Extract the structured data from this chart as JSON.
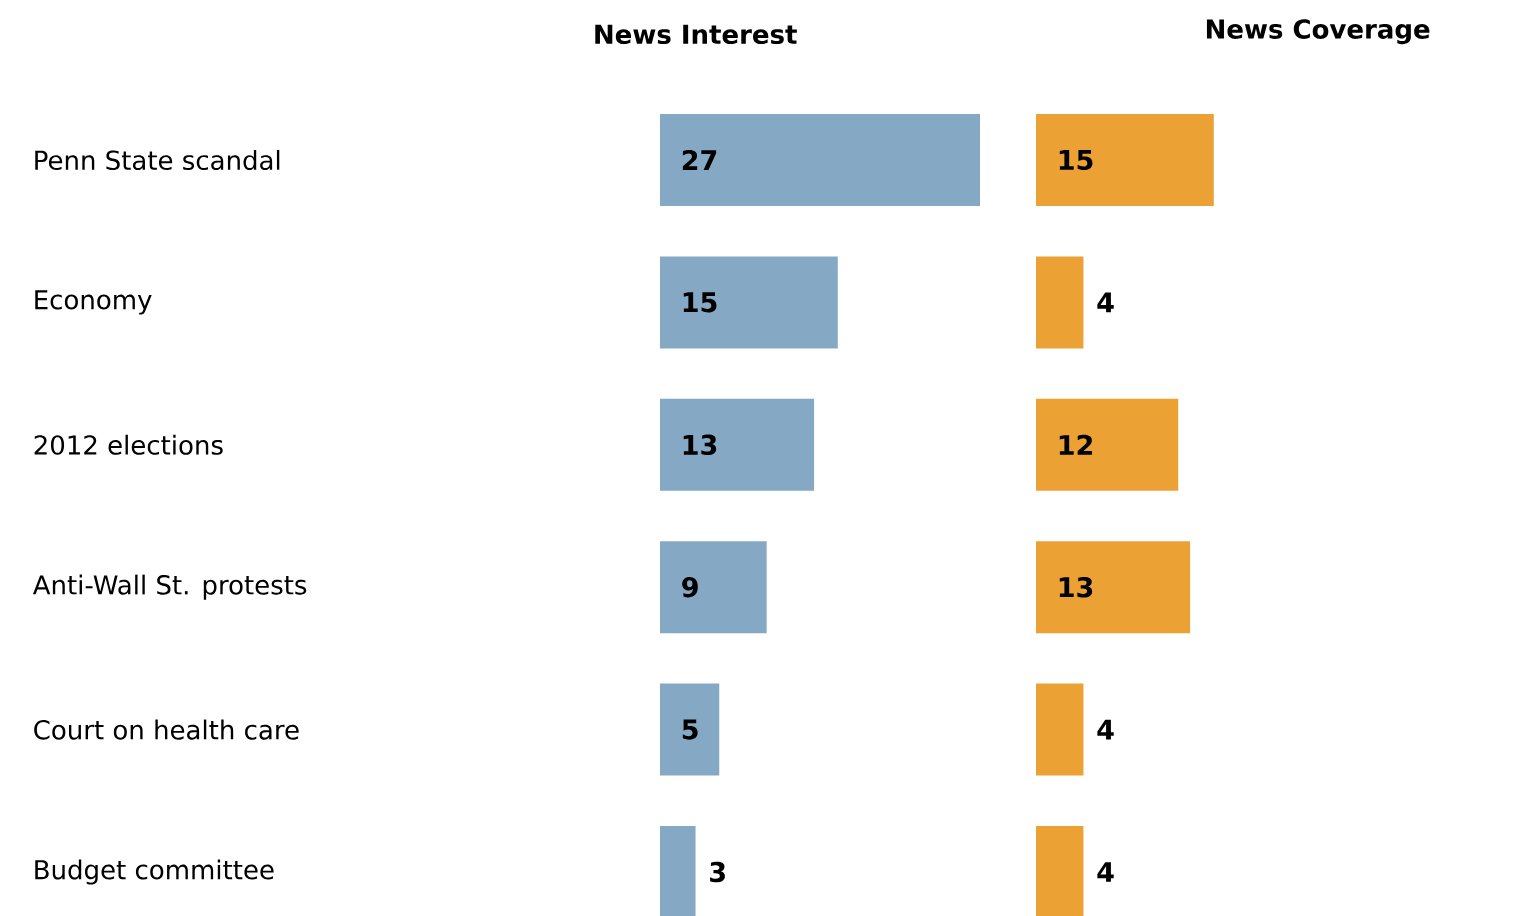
{
  "chart_data": [
    {
      "type": "bar",
      "orientation": "horizontal",
      "title": "News Interest",
      "categories": [
        "Penn State scandal",
        "Economy",
        "2012 elections",
        "Anti-Wall St. protests",
        "Court on health care",
        "Budget committee"
      ],
      "values": [
        27,
        15,
        13,
        9,
        5,
        3
      ],
      "color": "#85a9c5",
      "data_labels": true,
      "tick_labels": "y"
    },
    {
      "type": "bar",
      "orientation": "horizontal",
      "title": "News Coverage",
      "categories": [
        null,
        null,
        null,
        null,
        null,
        null
      ],
      "values": [
        15,
        4,
        12,
        13,
        4,
        4
      ],
      "color": "#eba133",
      "data_labels": true,
      "tick_labels": false
    }
  ]
}
